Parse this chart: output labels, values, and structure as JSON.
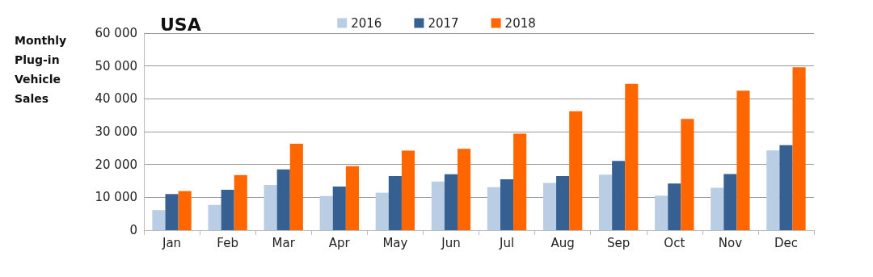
{
  "chart_data": {
    "type": "bar",
    "title": "USA",
    "ylabel": "Monthly\nPlug-in\nVehicle\nSales",
    "categories": [
      "Jan",
      "Feb",
      "Mar",
      "Apr",
      "May",
      "Jun",
      "Jul",
      "Aug",
      "Sep",
      "Oct",
      "Nov",
      "Dec"
    ],
    "series": [
      {
        "name": "2016",
        "color": "#b9cde4",
        "values": [
          6100,
          7700,
          13800,
          10400,
          11400,
          14800,
          13100,
          14400,
          16900,
          10500,
          12900,
          24300
        ]
      },
      {
        "name": "2017",
        "color": "#366092",
        "values": [
          11000,
          12300,
          18500,
          13300,
          16500,
          17000,
          15500,
          16500,
          21100,
          14200,
          17100,
          25900
        ]
      },
      {
        "name": "2018",
        "color": "#ff6600",
        "values": [
          11900,
          16800,
          26300,
          19500,
          24200,
          24800,
          29400,
          36200,
          44600,
          33900,
          42500,
          49600
        ]
      }
    ],
    "ylim": [
      0,
      60000
    ],
    "yticks": [
      0,
      {
        "value": 10000,
        "label": "10 000"
      },
      {
        "value": 20000,
        "label": "20 000"
      },
      {
        "value": 30000,
        "label": "30 000"
      },
      {
        "value": 40000,
        "label": "40 000"
      },
      {
        "value": 50000,
        "label": "50 000"
      },
      {
        "value": 60000,
        "label": "60 000"
      }
    ],
    "grid": "y",
    "legend": "top"
  }
}
